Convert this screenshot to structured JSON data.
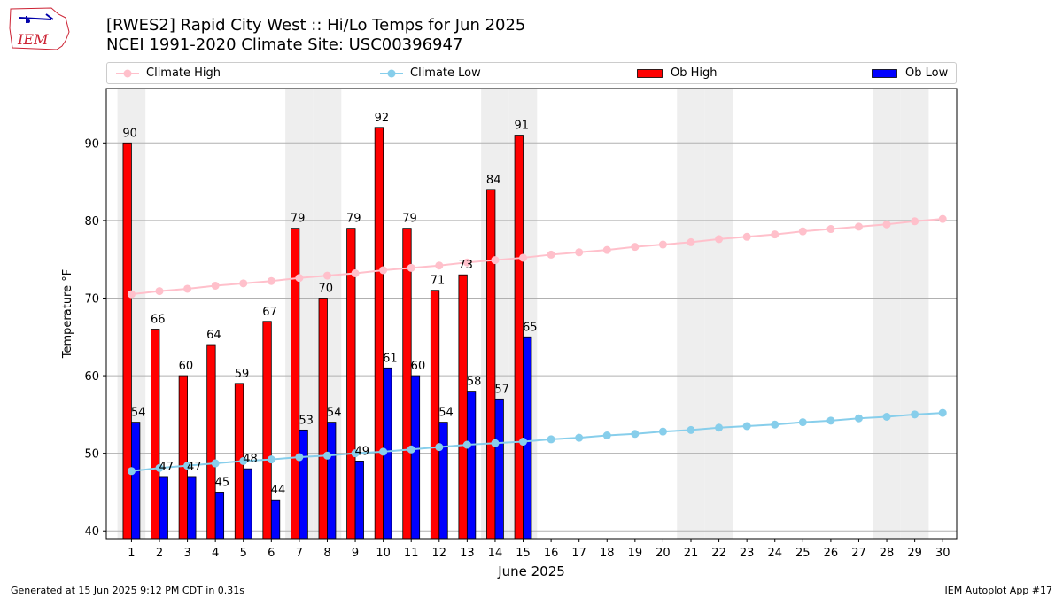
{
  "header": {
    "title_line1": "[RWES2] Rapid City West :: Hi/Lo Temps for Jun 2025",
    "title_line2": "NCEI 1991-2020 Climate Site: USC00396947"
  },
  "logo": {
    "text": "IEM"
  },
  "footer": {
    "generated": "Generated at 15 Jun 2025 9:12 PM CDT in 0.31s",
    "app": "IEM Autoplot App #17"
  },
  "legend": {
    "climate_high": "Climate High",
    "climate_low": "Climate Low",
    "ob_high": "Ob High",
    "ob_low": "Ob Low"
  },
  "colors": {
    "ob_high": "#ff0000",
    "ob_low": "#0000ff",
    "climate_high": "#ffc0cb",
    "climate_low": "#87ceeb",
    "weekend_band": "#eeeeee",
    "grid": "#b0b0b0"
  },
  "chart_data": {
    "type": "bar",
    "xlabel": "June 2025",
    "ylabel": "Temperature °F",
    "ylim": [
      39,
      97
    ],
    "yticks": [
      40,
      50,
      60,
      70,
      80,
      90
    ],
    "grid": "horizontal",
    "legend_position": "top",
    "days": [
      1,
      2,
      3,
      4,
      5,
      6,
      7,
      8,
      9,
      10,
      11,
      12,
      13,
      14,
      15,
      16,
      17,
      18,
      19,
      20,
      21,
      22,
      23,
      24,
      25,
      26,
      27,
      28,
      29,
      30
    ],
    "weekend_days": [
      1,
      7,
      8,
      14,
      15,
      21,
      22,
      28,
      29
    ],
    "series": [
      {
        "name": "Ob High",
        "kind": "bar",
        "values": [
          90,
          66,
          60,
          64,
          59,
          67,
          79,
          70,
          79,
          92,
          79,
          71,
          73,
          84,
          91
        ]
      },
      {
        "name": "Ob Low",
        "kind": "bar",
        "values": [
          54,
          47,
          47,
          45,
          48,
          44,
          53,
          54,
          49,
          61,
          60,
          54,
          58,
          57,
          65
        ]
      },
      {
        "name": "Climate High",
        "kind": "line",
        "values": [
          70.5,
          70.9,
          71.2,
          71.6,
          71.9,
          72.2,
          72.6,
          72.9,
          73.2,
          73.6,
          73.9,
          74.2,
          74.6,
          74.9,
          75.2,
          75.6,
          75.9,
          76.2,
          76.6,
          76.9,
          77.2,
          77.6,
          77.9,
          78.2,
          78.6,
          78.9,
          79.2,
          79.5,
          79.9,
          80.2
        ]
      },
      {
        "name": "Climate Low",
        "kind": "line",
        "values": [
          47.7,
          48.1,
          48.4,
          48.7,
          49.0,
          49.2,
          49.5,
          49.7,
          50.0,
          50.2,
          50.5,
          50.8,
          51.1,
          51.3,
          51.5,
          51.8,
          52.0,
          52.3,
          52.5,
          52.8,
          53.0,
          53.3,
          53.5,
          53.7,
          54.0,
          54.2,
          54.5,
          54.7,
          55.0,
          55.2
        ]
      }
    ]
  }
}
